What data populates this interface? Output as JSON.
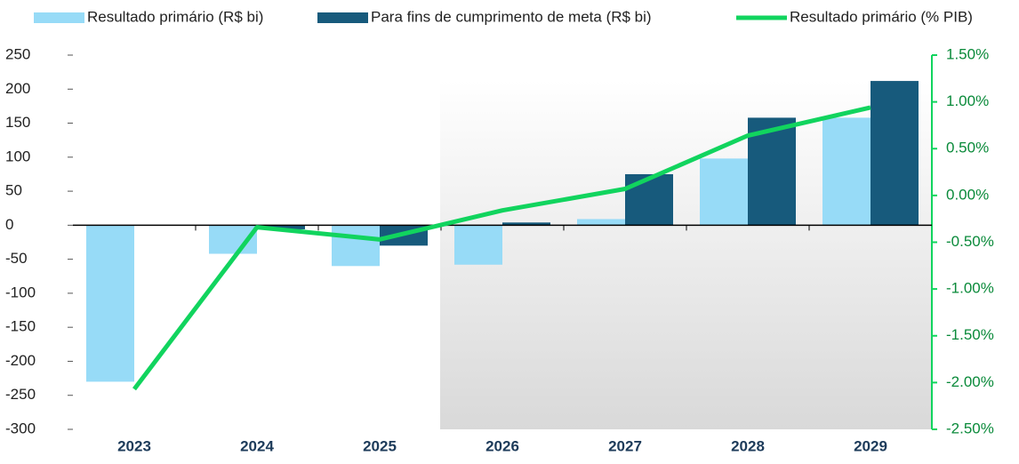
{
  "chart_data": {
    "type": "bar-line",
    "categories": [
      "2023",
      "2024",
      "2025",
      "2026",
      "2027",
      "2028",
      "2029"
    ],
    "series": [
      {
        "name": "Resultado primário (R$ bi)",
        "color": "#97dbf7",
        "type": "bar",
        "values": [
          -230,
          -42,
          -60,
          -58,
          9,
          98,
          158
        ]
      },
      {
        "name": "Para fins de cumprimento de meta (R$ bi)",
        "color": "#175a7c",
        "type": "bar",
        "values": [
          null,
          -6,
          -30,
          4,
          75,
          158,
          212
        ]
      },
      {
        "name": "Resultado primário (% PIB)",
        "color": "#11d45e",
        "type": "line",
        "axis": "y2",
        "values": [
          -2.07,
          -0.34,
          -0.47,
          -0.16,
          0.07,
          0.64,
          0.94
        ]
      }
    ],
    "ylim": [
      -300,
      250
    ],
    "yticks": [
      -300,
      -250,
      -200,
      -150,
      -100,
      -50,
      0,
      50,
      100,
      150,
      200,
      250
    ],
    "y2lim": [
      -2.5,
      1.5
    ],
    "y2ticks": [
      {
        "value": -2.5,
        "label": "-2.50%"
      },
      {
        "value": -2,
        "label": "-2.00%"
      },
      {
        "value": -1.5,
        "label": "-1.50%"
      },
      {
        "value": -1,
        "label": "-1.00%"
      },
      {
        "value": -0.5,
        "label": "-0.50%"
      },
      {
        "value": 0,
        "label": "0.00%"
      },
      {
        "value": 0.5,
        "label": "0.50%"
      },
      {
        "value": 1,
        "label": "1.00%"
      },
      {
        "value": 1.5,
        "label": "1.50%"
      }
    ],
    "legend": "top"
  }
}
